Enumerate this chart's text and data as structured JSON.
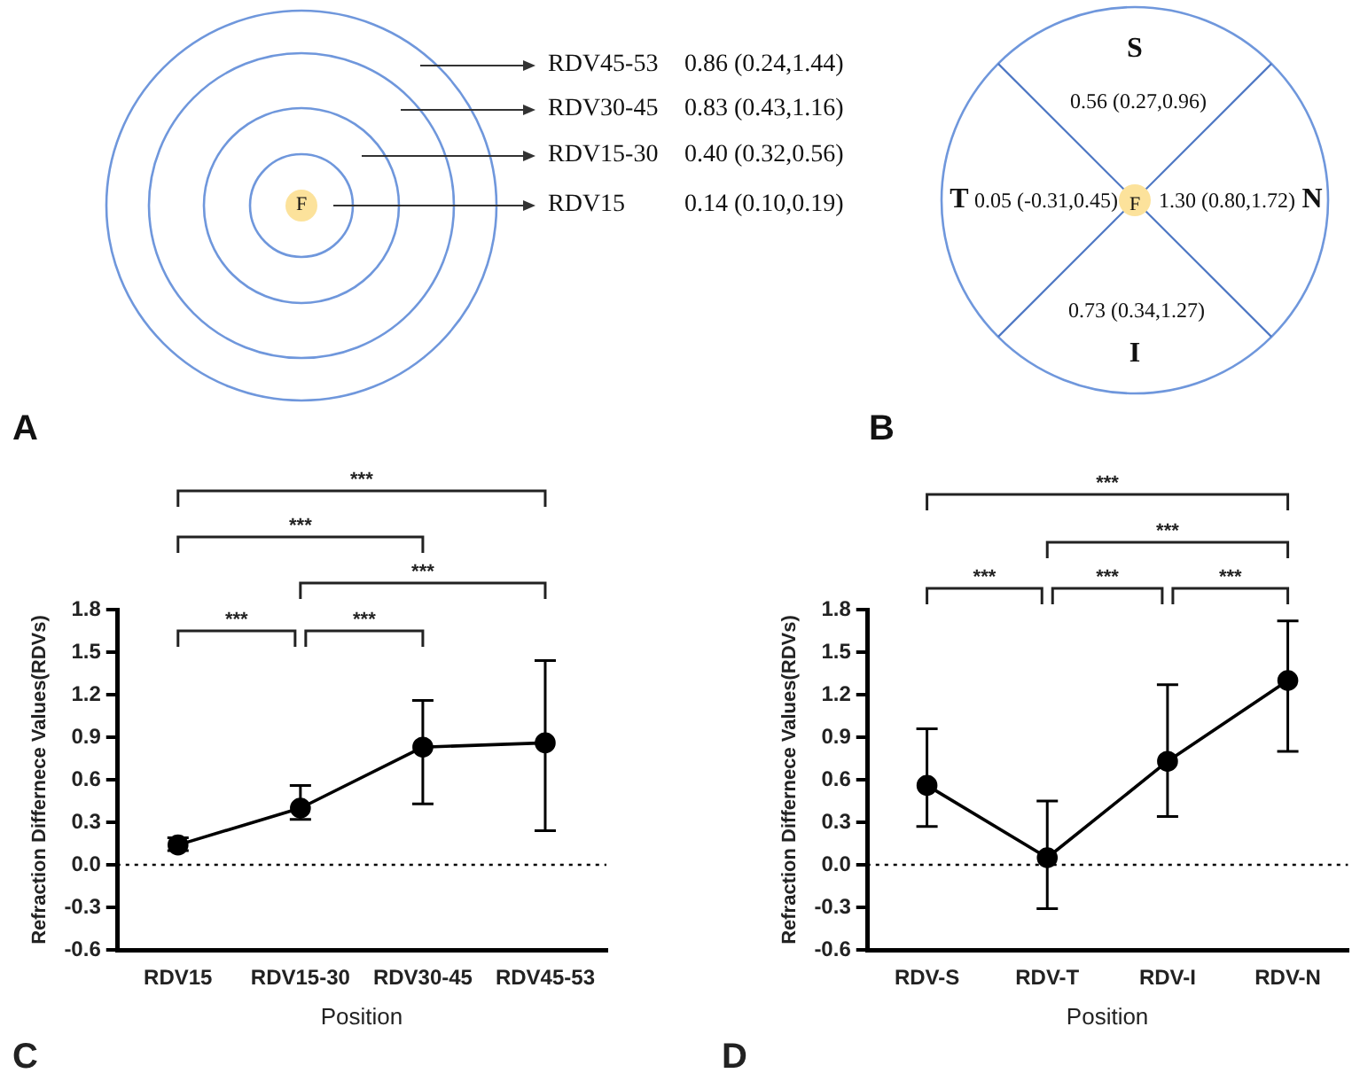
{
  "chart_data": [
    {
      "type": "other",
      "annotations": [
        "F",
        "RDV45-53",
        "0.86 (0.24,1.44)",
        "RDV30-45",
        "0.83 (0.43,1.16)",
        "RDV15-30",
        "0.40 (0.32,0.56)",
        "RDV15",
        "0.14 (0.10,0.19)",
        "A"
      ]
    },
    {
      "type": "other",
      "annotations": [
        "F",
        "S",
        "0.56 (0.27,0.96)",
        "T",
        "0.05 (-0.31,0.45)",
        "1.30 (0.80,1.72)",
        "N",
        "0.73 (0.34,1.27)",
        "I",
        "B"
      ]
    },
    {
      "type": "line",
      "categories": [
        "RDV15",
        "RDV15-30",
        "RDV30-45",
        "RDV45-53"
      ],
      "values": [
        0.14,
        0.4,
        0.83,
        0.86
      ],
      "errors": [
        [
          0.1,
          0.19
        ],
        [
          0.32,
          0.56
        ],
        [
          0.43,
          1.16
        ],
        [
          0.24,
          1.44
        ]
      ],
      "color": "#000000",
      "marker": "circle",
      "line_style": "solid",
      "xlabel": "Position",
      "ylabel": "Refraction Differnece Values(RDVs)",
      "ylim": [
        -0.6,
        1.8
      ],
      "yticks": [
        -0.6,
        -0.3,
        {
          "value": 0,
          "label": "0.0"
        },
        0.3,
        0.6,
        0.9,
        1.2,
        1.5,
        1.8
      ],
      "grid": false,
      "legend": false,
      "ref_lines": [
        {
          "axis": "y",
          "value": 0,
          "line_style": "dotted",
          "color": "#000000"
        }
      ],
      "annotations": [
        "***",
        "***",
        "***",
        "***",
        "***",
        "C"
      ]
    },
    {
      "type": "line",
      "categories": [
        "RDV-S",
        "RDV-T",
        "RDV-I",
        "RDV-N"
      ],
      "values": [
        0.56,
        0.05,
        0.73,
        1.3
      ],
      "errors": [
        [
          0.27,
          0.96
        ],
        [
          -0.31,
          0.45
        ],
        [
          0.34,
          1.27
        ],
        [
          0.8,
          1.72
        ]
      ],
      "color": "#000000",
      "marker": "circle",
      "line_style": "solid",
      "xlabel": "Position",
      "ylabel": "Refraction Differnece Values(RDVs)",
      "ylim": [
        -0.6,
        1.8
      ],
      "yticks": [
        -0.6,
        -0.3,
        {
          "value": 0,
          "label": "0.0"
        },
        0.3,
        0.6,
        0.9,
        1.2,
        1.5,
        1.8
      ],
      "grid": false,
      "legend": false,
      "ref_lines": [
        {
          "axis": "y",
          "value": 0,
          "line_style": "dotted",
          "color": "#000000"
        }
      ],
      "annotations": [
        "***",
        "***",
        "***",
        "***",
        "***",
        "D"
      ]
    }
  ]
}
